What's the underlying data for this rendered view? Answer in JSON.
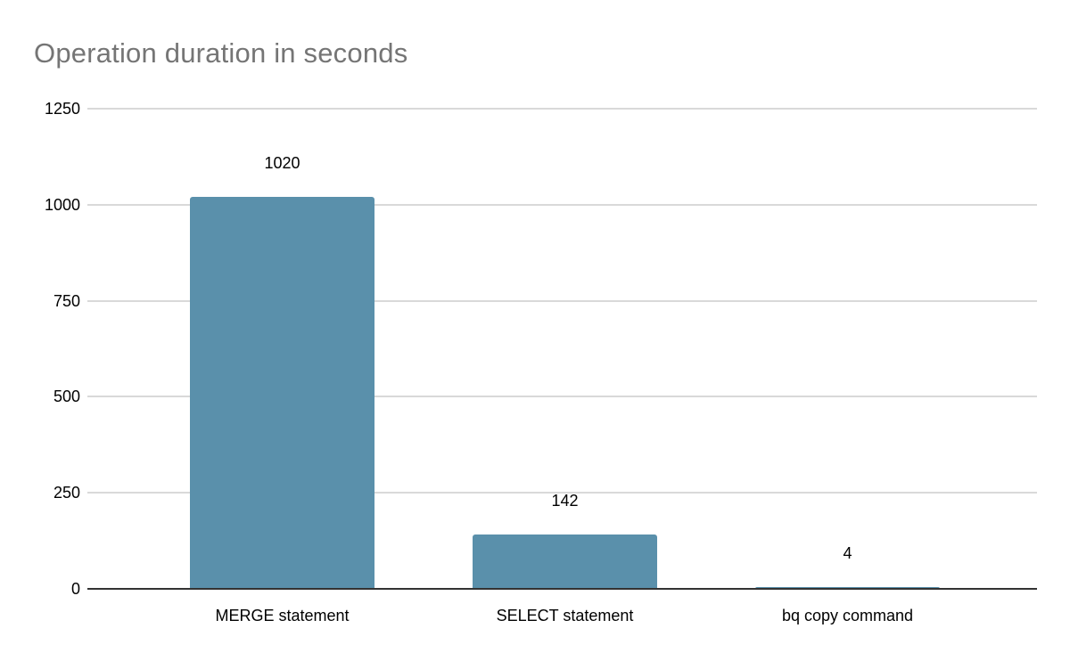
{
  "chart_data": {
    "type": "bar",
    "title": "Operation duration in seconds",
    "categories": [
      "MERGE statement",
      "SELECT statement",
      "bq copy command"
    ],
    "values": [
      1020,
      142,
      4
    ],
    "value_labels": [
      "1020",
      "142",
      "4"
    ],
    "yticks": [
      0,
      250,
      500,
      750,
      1000,
      1250
    ],
    "ytick_labels": [
      "0",
      "250",
      "500",
      "750",
      "1000",
      "1250"
    ],
    "ylim": [
      0,
      1250
    ],
    "xlabel": "",
    "ylabel": "",
    "grid": true,
    "legend": "none",
    "colors": {
      "bar": "#5a90ab",
      "title_text": "#757575",
      "tick_text": "#000000",
      "gridline": "#d9d9d9",
      "axis_line": "#333333",
      "background": "#ffffff"
    }
  }
}
